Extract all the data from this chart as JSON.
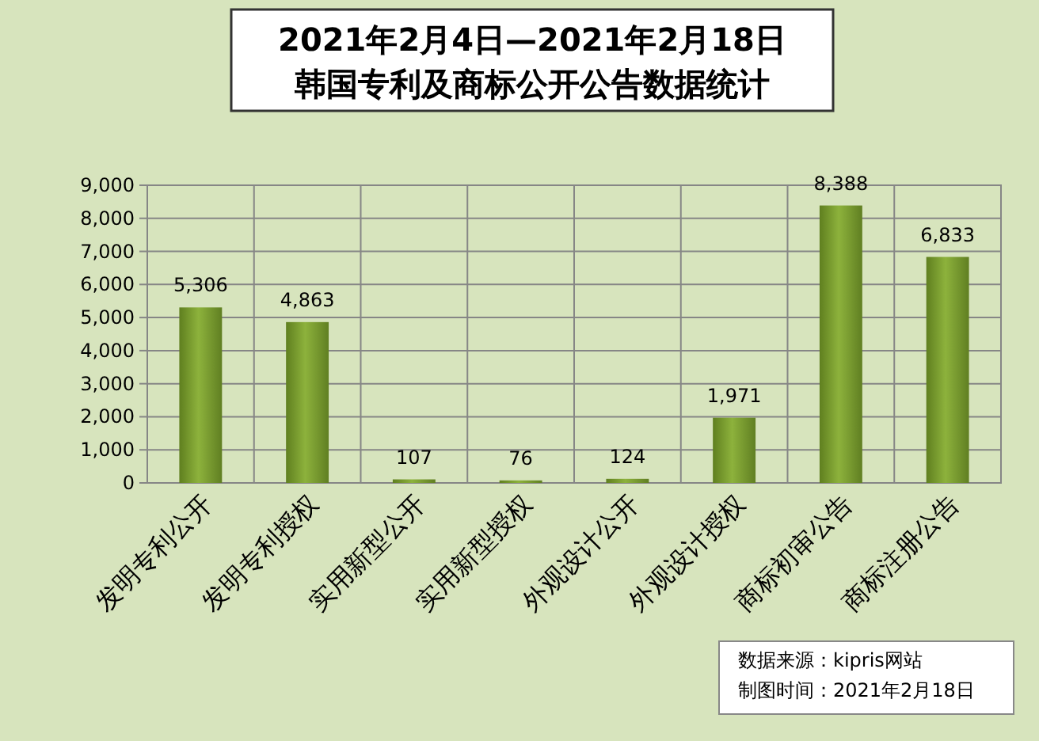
{
  "chart_data": {
    "type": "bar",
    "title": "2021年2月4日—2021年2月18日",
    "subtitle": "韩国专利及商标公开公告数据统计",
    "categories": [
      "发明专利公开",
      "发明专利授权",
      "实用新型公开",
      "实用新型授权",
      "外观设计公开",
      "外观设计授权",
      "商标初审公告",
      "商标注册公告"
    ],
    "values": [
      5306,
      4863,
      107,
      76,
      124,
      1971,
      8388,
      6833
    ],
    "color": "#8db23c",
    "ylim": [
      0,
      9000
    ],
    "yticks": [
      {
        "value": 0,
        "label": "0"
      },
      {
        "value": 1000,
        "label": "1,000"
      },
      {
        "value": 2000,
        "label": "2,000"
      },
      {
        "value": 3000,
        "label": "3,000"
      },
      {
        "value": 4000,
        "label": "4,000"
      },
      {
        "value": 5000,
        "label": "5,000"
      },
      {
        "value": 6000,
        "label": "6,000"
      },
      {
        "value": 7000,
        "label": "7,000"
      },
      {
        "value": 8000,
        "label": "8,000"
      },
      {
        "value": 9000,
        "label": "9,000"
      }
    ],
    "grid": true,
    "value_labels": [
      "5,306",
      "4,863",
      "107",
      "76",
      "124",
      "1,971",
      "8,388",
      "6,833"
    ],
    "annotations": [
      "数据来源：kipris网站",
      "制图时间：2021年2月18日"
    ]
  }
}
